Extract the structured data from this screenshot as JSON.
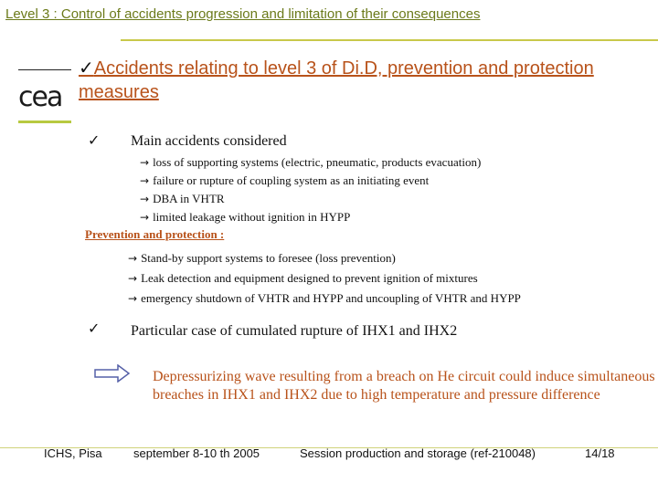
{
  "slide": {
    "title": "Level 3 : Control of accidents progression and limitation of their consequences",
    "logo_text": "cea",
    "heading_check": "✓",
    "heading": "Accidents relating to level 3 of Di.D, prevention and protection measures",
    "main_accidents": {
      "check": "✓",
      "label": "Main accidents considered",
      "items": [
        "loss of supporting systems (electric, pneumatic, products evacuation)",
        "failure or rupture of coupling system as an initiating event",
        "DBA in VHTR",
        "limited leakage without ignition in HYPP"
      ]
    },
    "prevention": {
      "label": "Prevention and protection :",
      "items": [
        "Stand-by support systems to foresee (loss prevention)",
        "Leak detection and equipment designed to prevent ignition of mixtures",
        "emergency shutdown of VHTR and HYPP and uncoupling of VHTR and HYPP"
      ]
    },
    "particular_case": {
      "check": "✓",
      "label": "Particular case of cumulated rupture of IHX1 and IHX2"
    },
    "depressurizing": "Depressurizing wave resulting from a breach on He circuit could induce simultaneous breaches in IHX1 and IHX2 due to high temperature and pressure difference",
    "arrow_glyph": "→"
  },
  "footer": {
    "venue": "ICHS, Pisa",
    "date": "september 8-10 th 2005",
    "session": "Session production and storage (ref-210048)",
    "page": "14/18"
  },
  "colors": {
    "title": "#6b7a1a",
    "accent": "#b8521a",
    "rule": "#c9c94a",
    "logo_green": "#b7c940"
  }
}
